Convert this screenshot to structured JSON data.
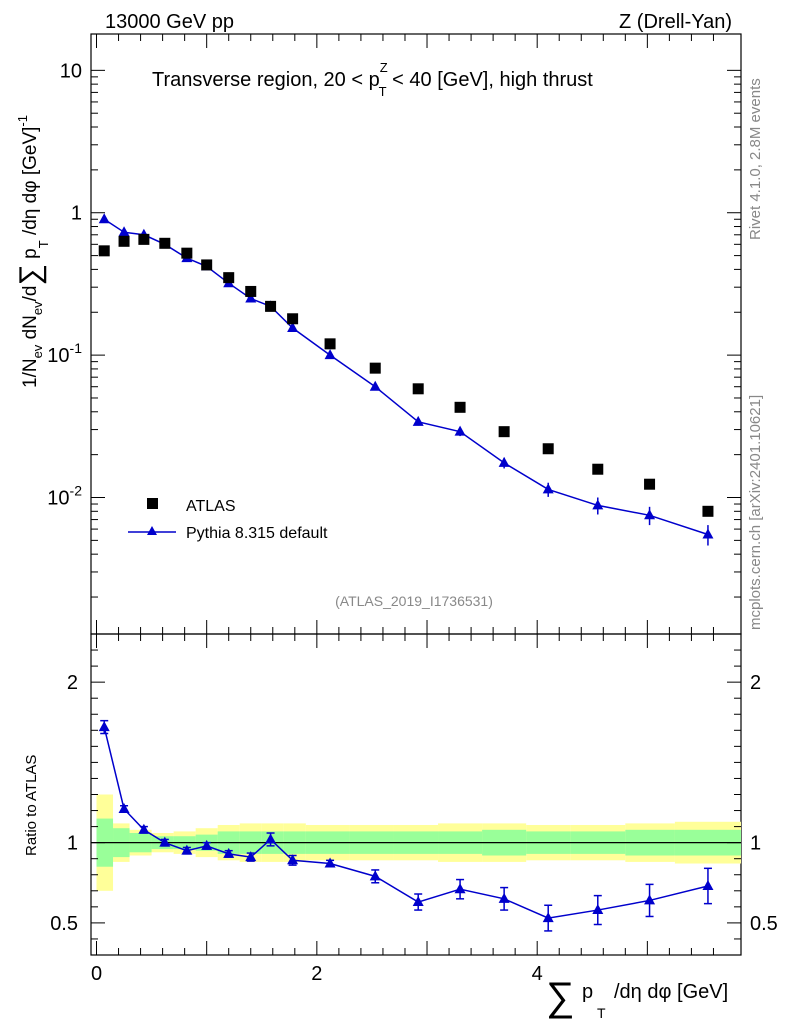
{
  "header": {
    "energy_label": "13000 GeV pp",
    "process_label": "Z (Drell-Yan)",
    "plot_title": "Transverse region, 20 < p_T^Z < 40 [GeV], high thrust",
    "plot_title_pre": "Transverse region, 20 < p",
    "plot_title_sup": "Z",
    "plot_title_sub": "T",
    "plot_title_post": " < 40 [GeV], high thrust",
    "side_label_top": "Rivet 4.1.0,  2.8M events",
    "side_label_bottom": "mcplots.cern.ch [arXiv:2401.10621]",
    "analysis_id": "(ATLAS_2019_I1736531)"
  },
  "axes": {
    "main_ylabel": "1/N_ev dN_ev/d∑p_T/dη dφ [GeV]^-1",
    "ratio_ylabel": "Ratio to ATLAS",
    "xlabel": "∑p_T/dη dφ [GeV]",
    "main_yticks": [
      {
        "value": 10,
        "label": "10"
      },
      {
        "value": 1,
        "label": "1"
      },
      {
        "value": 0.1,
        "label": "10^-1"
      },
      {
        "value": 0.01,
        "label": "10^-2"
      }
    ],
    "ratio_yticks": [
      {
        "value": 2,
        "label": "2"
      },
      {
        "value": 1,
        "label": "1"
      },
      {
        "value": 0.5,
        "label": "0.5"
      }
    ],
    "xticks": [
      {
        "value": 0,
        "label": "0"
      },
      {
        "value": 2,
        "label": "2"
      },
      {
        "value": 4,
        "label": "4"
      }
    ]
  },
  "legend": {
    "atlas_label": "ATLAS",
    "pythia_label": "Pythia 8.315 default"
  },
  "colors": {
    "mc": "#0000cc",
    "data": "#000000",
    "band_inner": "#99ff99",
    "band_outer": "#ffff99"
  },
  "chart_data": {
    "type": "scatter",
    "title": "Transverse region, 20 < p_T^Z < 40 [GeV], high thrust",
    "xlabel": "∑p_T/dη dφ [GeV]",
    "ylabel": "1/N_ev dN_ev/d∑p_T/dη dφ [GeV]^-1",
    "xlim": [
      -0.05,
      5.85
    ],
    "ylim": [
      0.0011,
      18
    ],
    "yscale": "log",
    "ratio_ylim": [
      0.3,
      2.3
    ],
    "bin_edges": [
      0,
      0.15,
      0.3,
      0.5,
      0.7,
      0.9,
      1.1,
      1.3,
      1.5,
      1.7,
      1.9,
      2.3,
      2.7,
      3.1,
      3.5,
      3.9,
      4.3,
      4.8,
      5.25,
      5.85
    ],
    "x": [
      0.07,
      0.25,
      0.43,
      0.62,
      0.82,
      1.0,
      1.2,
      1.4,
      1.58,
      1.78,
      2.12,
      2.53,
      2.92,
      3.3,
      3.7,
      4.1,
      4.55,
      5.02,
      5.55
    ],
    "series": [
      {
        "name": "ATLAS",
        "values": [
          0.54,
          0.63,
          0.65,
          0.61,
          0.52,
          0.43,
          0.35,
          0.28,
          0.22,
          0.18,
          0.12,
          0.081,
          0.058,
          0.043,
          0.029,
          0.022,
          0.0158,
          0.0124,
          0.008
        ]
      },
      {
        "name": "Pythia 8.315 default",
        "values": [
          0.9,
          0.73,
          0.7,
          0.6,
          0.48,
          0.42,
          0.32,
          0.25,
          0.22,
          0.155,
          0.1,
          0.06,
          0.034,
          0.029,
          0.0175,
          0.0114,
          0.0088,
          0.0075,
          0.0055
        ],
        "errors": [
          0.035,
          0.02,
          0.02,
          0.015,
          0.012,
          0.01,
          0.01,
          0.008,
          0.008,
          0.006,
          0.004,
          0.003,
          0.002,
          0.002,
          0.0015,
          0.0013,
          0.0012,
          0.0011,
          0.0009
        ]
      }
    ],
    "ratio": {
      "values": [
        1.72,
        1.21,
        1.08,
        1.0,
        0.95,
        0.98,
        0.93,
        0.91,
        1.02,
        0.89,
        0.87,
        0.79,
        0.63,
        0.71,
        0.65,
        0.53,
        0.58,
        0.64,
        0.73
      ],
      "errors": [
        0.04,
        0.02,
        0.02,
        0.02,
        0.02,
        0.02,
        0.02,
        0.025,
        0.04,
        0.03,
        0.02,
        0.04,
        0.05,
        0.06,
        0.07,
        0.08,
        0.09,
        0.1,
        0.11
      ],
      "band_inner": [
        0.15,
        0.09,
        0.06,
        0.04,
        0.04,
        0.05,
        0.07,
        0.07,
        0.07,
        0.07,
        0.07,
        0.07,
        0.07,
        0.07,
        0.08,
        0.07,
        0.07,
        0.08,
        0.08
      ],
      "band_outer": [
        0.3,
        0.12,
        0.08,
        0.06,
        0.07,
        0.09,
        0.11,
        0.12,
        0.12,
        0.12,
        0.11,
        0.11,
        0.11,
        0.12,
        0.12,
        0.11,
        0.11,
        0.12,
        0.13
      ]
    }
  }
}
